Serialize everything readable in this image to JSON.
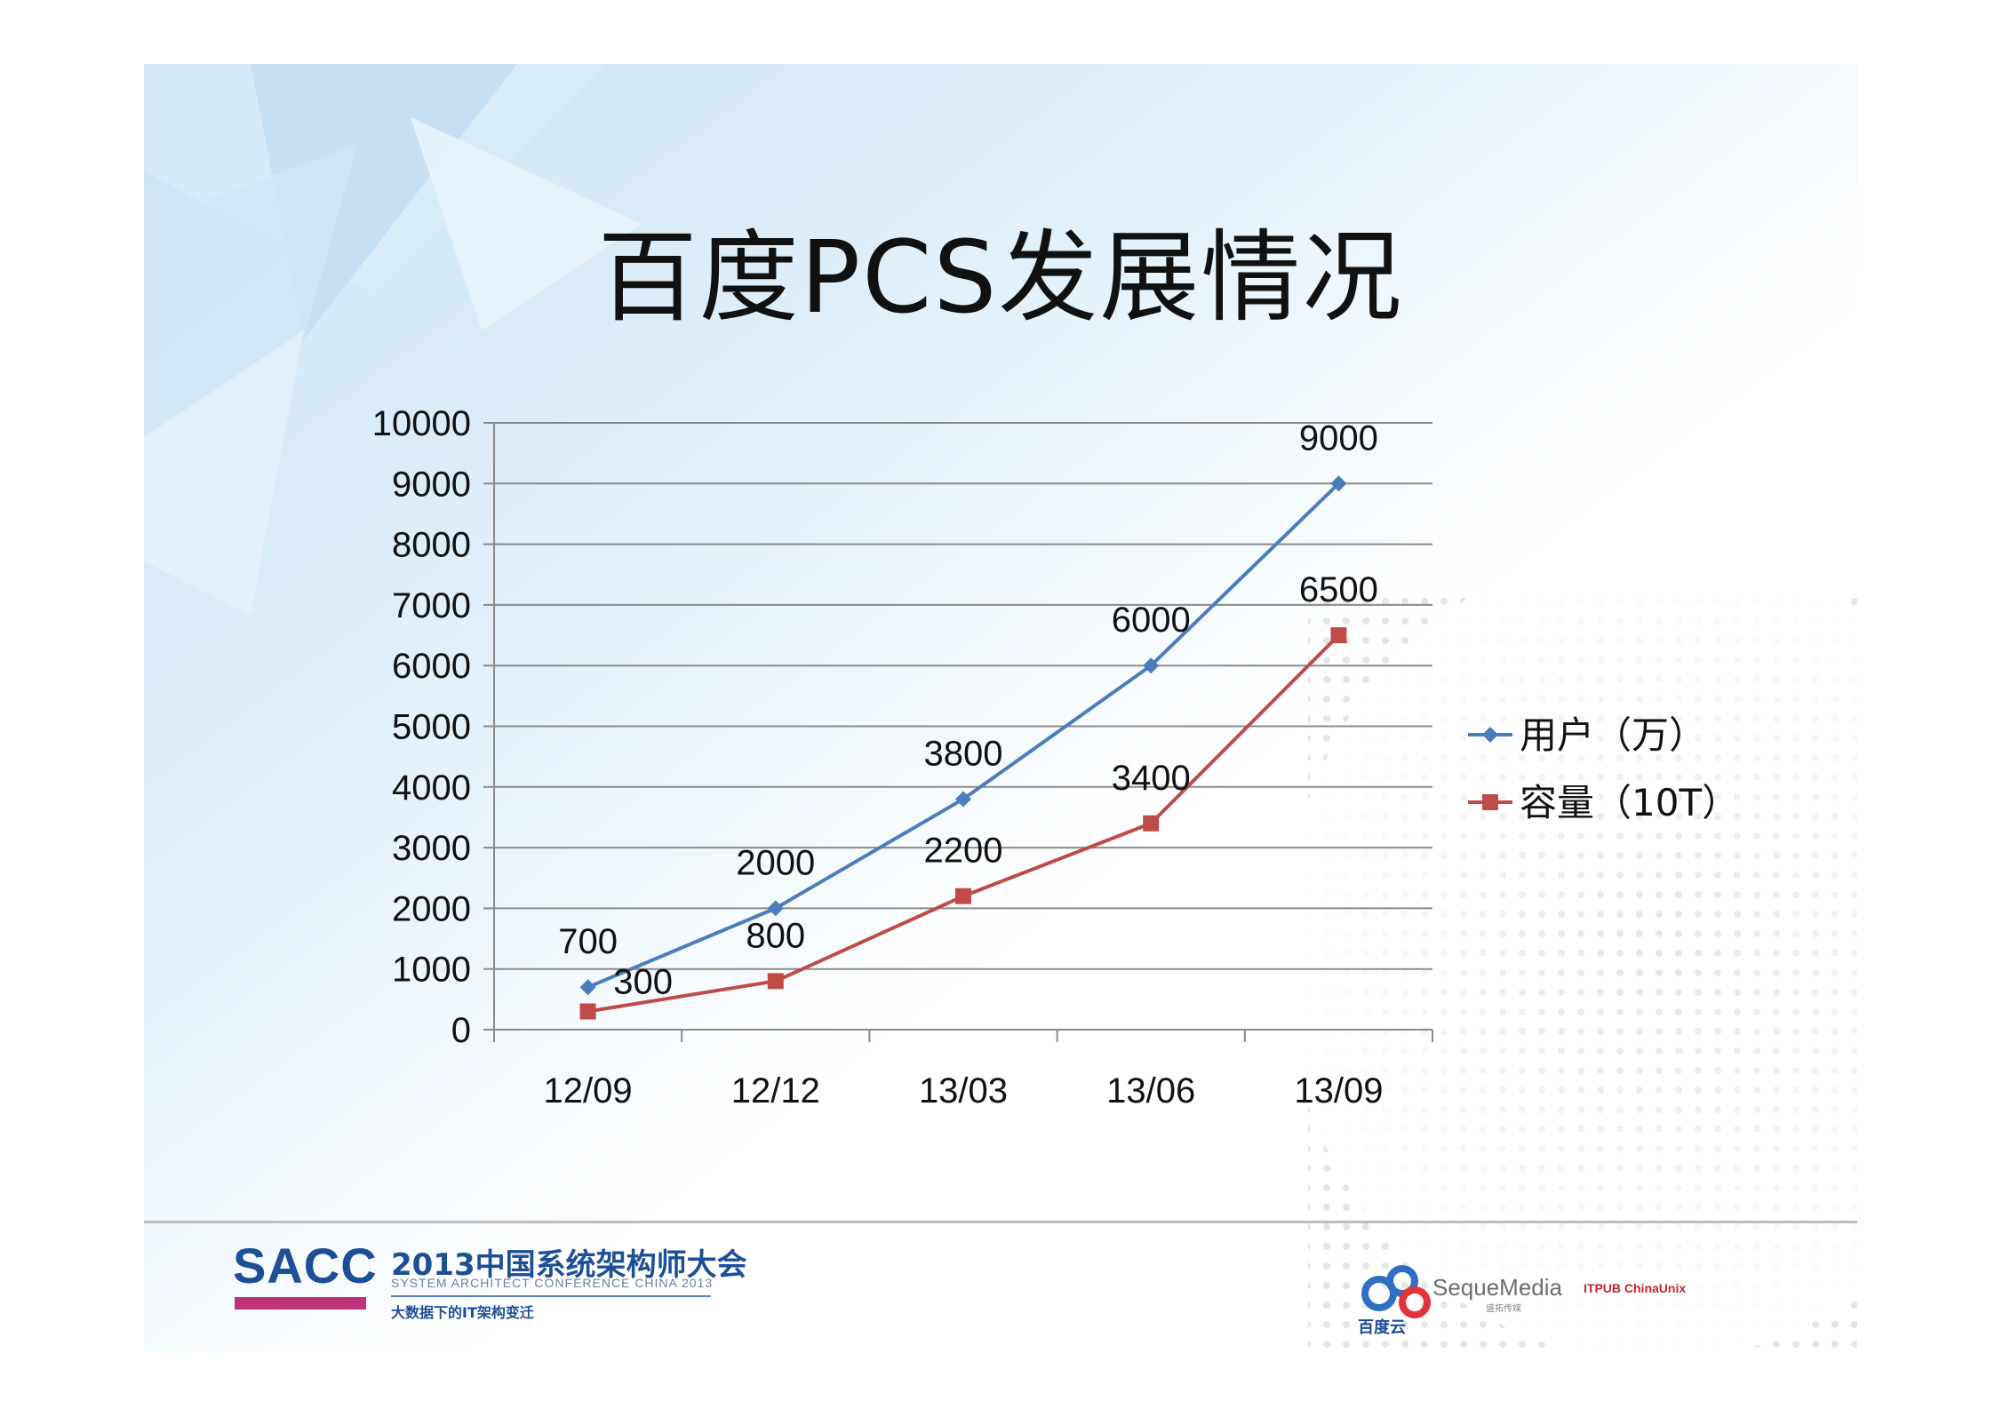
{
  "slide": {
    "title": "百度PCS发展情况"
  },
  "chart_data": {
    "type": "line",
    "title": "",
    "xlabel": "",
    "ylabel": "",
    "categories": [
      "12/09",
      "12/12",
      "13/03",
      "13/06",
      "13/09"
    ],
    "yticks": [
      "0",
      "1000",
      "2000",
      "3000",
      "4000",
      "5000",
      "6000",
      "7000",
      "8000",
      "9000",
      "10000"
    ],
    "ylim": [
      0,
      10000
    ],
    "grid": true,
    "legend_position": "right",
    "series": [
      {
        "name": "用户（万）",
        "values": [
          700,
          2000,
          3800,
          6000,
          9000
        ],
        "color": "#4a7ebb",
        "marker": "diamond",
        "labels": [
          "700",
          "2000",
          "3800",
          "6000",
          "9000"
        ]
      },
      {
        "name": "容量（10T）",
        "values": [
          300,
          800,
          2200,
          3400,
          6500
        ],
        "color": "#be4b48",
        "marker": "square",
        "labels": [
          "300",
          "800",
          "2200",
          "3400",
          "6500"
        ]
      }
    ]
  },
  "footer": {
    "sacc": "SACC",
    "conference_title": "2013中国系统架构师大会",
    "conference_sub": "SYSTEM ARCHITECT CONFERENCE CHINA 2013",
    "slogan": "大数据下的IT架构变迁",
    "baidu": "百度云",
    "seque": "SequeMedia",
    "seque_sub": "盛拓传媒",
    "partners": "ITPUB  ChinaUnix"
  }
}
